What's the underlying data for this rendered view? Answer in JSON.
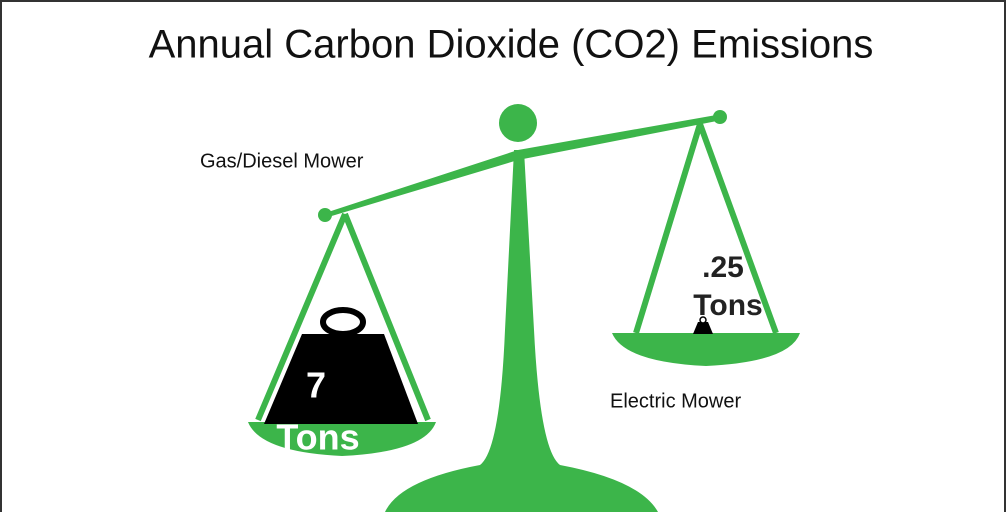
{
  "header": {
    "title": "Annual Carbon Dioxide (CO2) Emissions"
  },
  "left": {
    "label": "Gas/Diesel Mower",
    "amount": "7",
    "unit": "Tons"
  },
  "right": {
    "label": "Electric Mower",
    "amount": ".25",
    "unit": "Tons"
  }
}
